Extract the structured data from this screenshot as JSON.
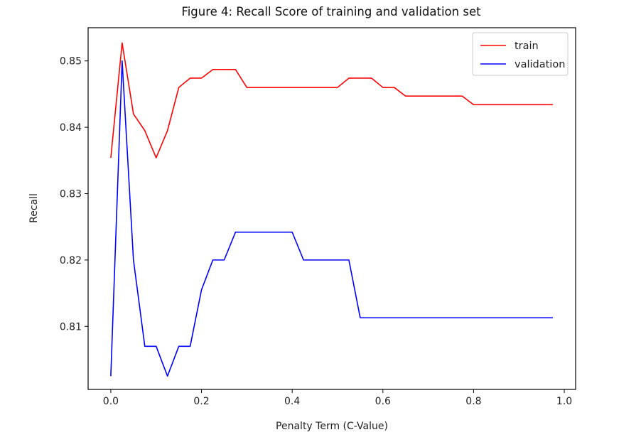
{
  "chart_data": {
    "type": "line",
    "title": "Figure 4: Recall Score of training and validation set",
    "xlabel": "Penalty Term (C-Value)",
    "ylabel": "Recall",
    "xlim": [
      -0.05,
      1.025
    ],
    "ylim": [
      0.8005,
      0.855
    ],
    "x_ticks": [
      0.0,
      0.2,
      0.4,
      0.6,
      0.8,
      1.0
    ],
    "x_tick_labels": [
      "0.0",
      "0.2",
      "0.4",
      "0.6",
      "0.8",
      "1.0"
    ],
    "y_ticks": [
      0.81,
      0.82,
      0.83,
      0.84,
      0.85
    ],
    "y_tick_labels": [
      "0.81",
      "0.82",
      "0.83",
      "0.84",
      "0.85"
    ],
    "grid": false,
    "legend_position": "top-right",
    "x": [
      0.0,
      0.025,
      0.05,
      0.075,
      0.1,
      0.125,
      0.15,
      0.175,
      0.2,
      0.225,
      0.25,
      0.275,
      0.3,
      0.325,
      0.35,
      0.375,
      0.4,
      0.425,
      0.45,
      0.475,
      0.5,
      0.525,
      0.55,
      0.575,
      0.6,
      0.625,
      0.65,
      0.675,
      0.7,
      0.725,
      0.75,
      0.775,
      0.8,
      0.825,
      0.85,
      0.875,
      0.9,
      0.925,
      0.95,
      0.975
    ],
    "series": [
      {
        "name": "train",
        "color": "#ff0000",
        "values": [
          0.8354,
          0.8527,
          0.842,
          0.8395,
          0.8354,
          0.8395,
          0.846,
          0.8474,
          0.8474,
          0.8487,
          0.8487,
          0.8487,
          0.846,
          0.846,
          0.846,
          0.846,
          0.846,
          0.846,
          0.846,
          0.846,
          0.846,
          0.8474,
          0.8474,
          0.8474,
          0.846,
          0.846,
          0.8447,
          0.8447,
          0.8447,
          0.8447,
          0.8447,
          0.8447,
          0.8434,
          0.8434,
          0.8434,
          0.8434,
          0.8434,
          0.8434,
          0.8434,
          0.8434
        ]
      },
      {
        "name": "validation",
        "color": "#0000ff",
        "values": [
          0.8025,
          0.85,
          0.82,
          0.807,
          0.807,
          0.8025,
          0.807,
          0.807,
          0.8155,
          0.82,
          0.82,
          0.8242,
          0.8242,
          0.8242,
          0.8242,
          0.8242,
          0.8242,
          0.82,
          0.82,
          0.82,
          0.82,
          0.82,
          0.8113,
          0.8113,
          0.8113,
          0.8113,
          0.8113,
          0.8113,
          0.8113,
          0.8113,
          0.8113,
          0.8113,
          0.8113,
          0.8113,
          0.8113,
          0.8113,
          0.8113,
          0.8113,
          0.8113,
          0.8113
        ]
      }
    ]
  }
}
